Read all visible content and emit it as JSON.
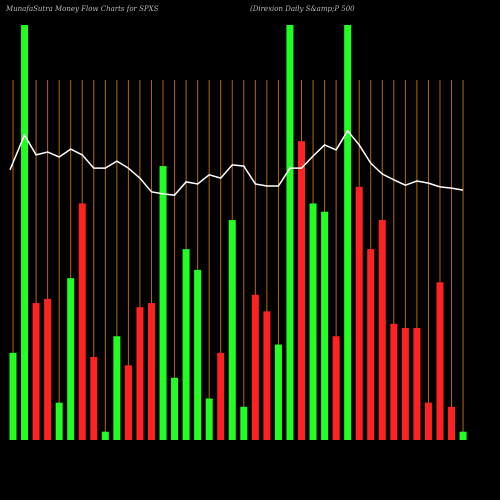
{
  "chart_data": {
    "type": "bar",
    "title": "MunafaSutra  Money Flow  Charts for SPXS",
    "subtitle": "(Direxion  Daily S&amp;P 500",
    "values": [
      21,
      100,
      33,
      34,
      9,
      39,
      57,
      20,
      2,
      25,
      18,
      32,
      33,
      66,
      15,
      46,
      41,
      10,
      21,
      53,
      8,
      35,
      31,
      23,
      100,
      72,
      57,
      55,
      25,
      100,
      61,
      46,
      53,
      28,
      27,
      27,
      9,
      38,
      8,
      2
    ],
    "colors": [
      "#22ff22",
      "#22ff22",
      "#ff2222",
      "#ff2222",
      "#22ff22",
      "#22ff22",
      "#ff2222",
      "#ff2222",
      "#22ff22",
      "#22ff22",
      "#ff2222",
      "#ff2222",
      "#ff2222",
      "#22ff22",
      "#22ff22",
      "#22ff22",
      "#22ff22",
      "#22ff22",
      "#ff2222",
      "#22ff22",
      "#22ff22",
      "#ff2222",
      "#ff2222",
      "#22ff22",
      "#22ff22",
      "#ff2222",
      "#22ff22",
      "#22ff22",
      "#ff2222",
      "#22ff22",
      "#ff2222",
      "#ff2222",
      "#ff2222",
      "#ff2222",
      "#ff2222",
      "#ff2222",
      "#ff2222",
      "#ff2222",
      "#ff2222",
      "#22ff22"
    ],
    "line": {
      "color": "#ffffff",
      "values": [
        65.1,
        73.5,
        68.7,
        69.4,
        68.2,
        70.1,
        68.7,
        65.5,
        65.5,
        67.2,
        65.5,
        63.1,
        59.8,
        59.3,
        59.0,
        62.2,
        61.7,
        63.9,
        63.1,
        66.3,
        66.0,
        61.7,
        61.2,
        61.2,
        65.5,
        65.5,
        68.4,
        71.1,
        69.9,
        74.5,
        71.1,
        66.7,
        64.1,
        62.7,
        61.4,
        62.4,
        61.9,
        61.0,
        60.7,
        60.2
      ]
    },
    "ylim": [
      0,
      100
    ],
    "grid_color": "#b8660b"
  }
}
